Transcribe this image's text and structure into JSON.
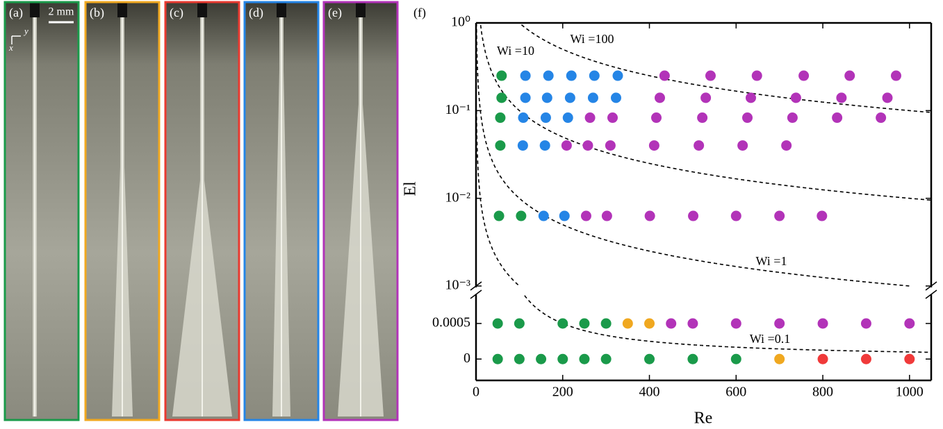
{
  "panels": [
    {
      "label": "(a)",
      "color": "#1a9a4a"
    },
    {
      "label": "(b)",
      "color": "#f0a820"
    },
    {
      "label": "(c)",
      "color": "#e83a30"
    },
    {
      "label": "(d)",
      "color": "#2585e6"
    },
    {
      "label": "(e)",
      "color": "#b233b8"
    }
  ],
  "scale_bar": "2 mm",
  "axis_glyphs": {
    "x": "x",
    "y": "y"
  },
  "chart_data": [
    {
      "type": "scatter",
      "label": "(f)",
      "ylabel": "El",
      "log_y": true,
      "xlim": [
        0,
        1050
      ],
      "ylim": [
        0.001,
        1
      ],
      "yticks": [
        {
          "value": 1,
          "label": "10⁰"
        },
        {
          "value": 0.1,
          "label": "10⁻¹"
        },
        {
          "value": 0.01,
          "label": "10⁻²"
        },
        {
          "value": 0.001,
          "label": "10⁻³"
        }
      ],
      "curves": [
        {
          "label": "Wi =100",
          "wi": 100
        },
        {
          "label": "Wi =10",
          "wi": 10
        },
        {
          "label": "Wi =1",
          "wi": 1
        },
        {
          "label": "Wi =0.1",
          "wi": 0.1
        }
      ],
      "series": [
        {
          "color": "#1a9a4a",
          "x": [
            59,
            59,
            56,
            56,
            53,
            104
          ],
          "values": [
            0.25,
            0.14,
            0.083,
            0.04,
            0.0063,
            0.0063
          ]
        },
        {
          "color": "#2585e6",
          "x": [
            114,
            167,
            220,
            273,
            327,
            114,
            164,
            217,
            270,
            323,
            109,
            161,
            212,
            108,
            159,
            156,
            204
          ],
          "values": [
            0.25,
            0.25,
            0.25,
            0.25,
            0.25,
            0.14,
            0.14,
            0.14,
            0.14,
            0.14,
            0.083,
            0.083,
            0.083,
            0.04,
            0.04,
            0.0063,
            0.0063
          ]
        },
        {
          "color": "#b233b8",
          "x": [
            435,
            541,
            648,
            756,
            862,
            969,
            424,
            530,
            634,
            738,
            843,
            949,
            263,
            315,
            416,
            522,
            626,
            730,
            833,
            934,
            209,
            258,
            310,
            411,
            514,
            615,
            716,
            254,
            302,
            401,
            501,
            600,
            700,
            798
          ],
          "values": [
            0.25,
            0.25,
            0.25,
            0.25,
            0.25,
            0.25,
            0.14,
            0.14,
            0.14,
            0.14,
            0.14,
            0.14,
            0.083,
            0.083,
            0.083,
            0.083,
            0.083,
            0.083,
            0.083,
            0.083,
            0.04,
            0.04,
            0.04,
            0.04,
            0.04,
            0.04,
            0.04,
            0.0063,
            0.0063,
            0.0063,
            0.0063,
            0.0063,
            0.0063,
            0.0063
          ]
        }
      ]
    },
    {
      "type": "scatter",
      "xlabel": "Re",
      "xlim": [
        0,
        1050
      ],
      "xticks": [
        0,
        200,
        400,
        600,
        800,
        1000
      ],
      "ylim": [
        -0.0003,
        0.0009
      ],
      "yticks": [
        0,
        0.0005
      ],
      "series": [
        {
          "color": "#1a9a4a",
          "x": [
            50,
            100,
            200,
            250,
            300,
            50,
            100,
            150,
            200,
            250,
            300,
            400,
            500,
            600
          ],
          "values": [
            0.0005,
            0.0005,
            0.0005,
            0.0005,
            0.0005,
            0,
            0,
            0,
            0,
            0,
            0,
            0,
            0,
            0
          ]
        },
        {
          "color": "#f0a820",
          "x": [
            350,
            400,
            700
          ],
          "values": [
            0.0005,
            0.0005,
            0
          ]
        },
        {
          "color": "#b233b8",
          "x": [
            450,
            500,
            600,
            700,
            800,
            900,
            1000
          ],
          "values": [
            0.0005,
            0.0005,
            0.0005,
            0.0005,
            0.0005,
            0.0005,
            0.0005
          ]
        },
        {
          "color": "#f03a3a",
          "x": [
            800,
            900,
            1000
          ],
          "values": [
            0,
            0,
            0
          ]
        }
      ]
    }
  ]
}
